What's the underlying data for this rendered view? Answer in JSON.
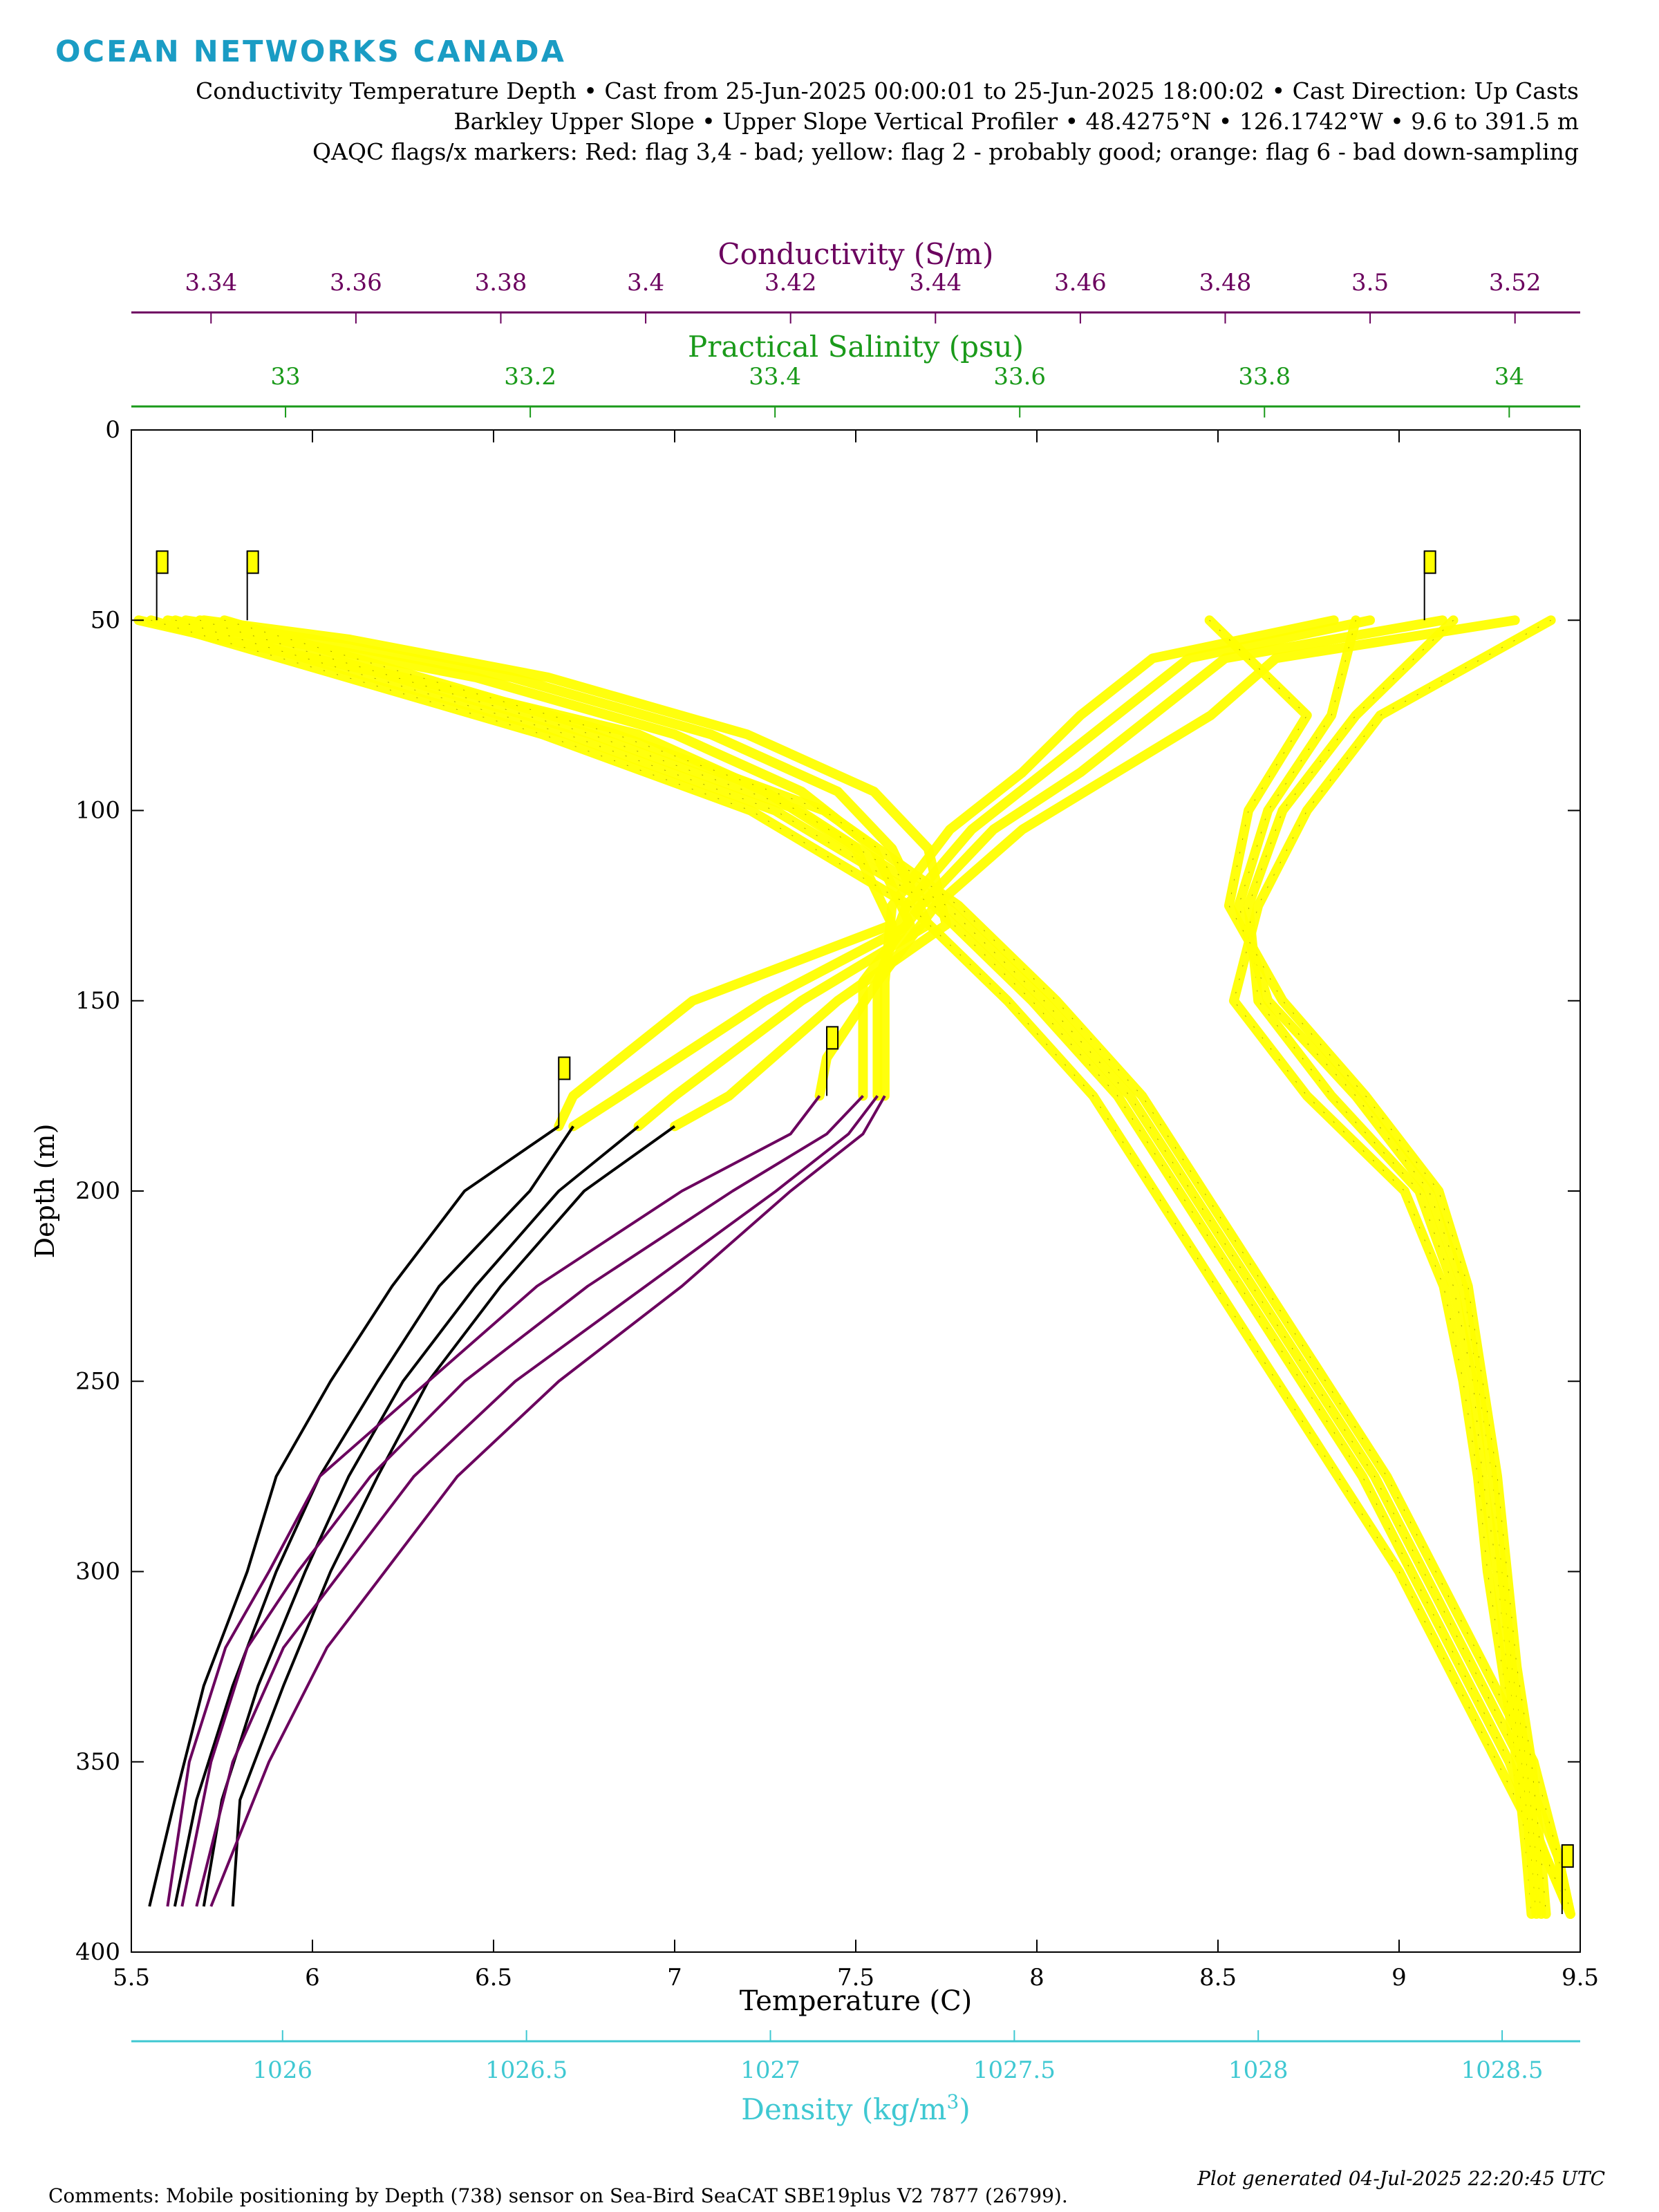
{
  "logo": "OCEAN NETWORKS CANADA",
  "header": {
    "line1": "Conductivity Temperature Depth • Cast from 25-Jun-2025 00:00:01 to 25-Jun-2025 18:00:02 • Cast Direction: Up Casts",
    "line2": "Barkley Upper Slope • Upper Slope Vertical Profiler • 48.4275°N • 126.1742°W • 9.6 to 391.5 m",
    "line3": "QAQC flags/x markers: Red: flag 3,4 - bad; yellow: flag 2 - probably good; orange: flag 6 - bad down-sampling"
  },
  "footer": {
    "comments": "Comments: Mobile positioning by Depth (738) sensor on Sea-Bird SeaCAT SBE19plus V2 7877 (26799).",
    "generated": "Plot generated 04-Jul-2025 22:20:45 UTC"
  },
  "colors": {
    "conductivity": "#6b005e",
    "salinity": "#1a9a1a",
    "density": "#3fc8d2",
    "temperature": "#000000",
    "qaqc_yellow": "#ffff00"
  },
  "chart_data": {
    "type": "line",
    "y_axis": {
      "label": "Depth (m)",
      "range": [
        0,
        400
      ],
      "reversed": true,
      "ticks": [
        "0",
        "50",
        "100",
        "150",
        "200",
        "250",
        "300",
        "350",
        "400"
      ]
    },
    "axes": {
      "temperature": {
        "label": "Temperature (C)",
        "range": [
          5.5,
          9.5
        ],
        "ticks": [
          {
            "v": 5.5,
            "t": "5.5"
          },
          {
            "v": 6,
            "t": "6"
          },
          {
            "v": 6.5,
            "t": "6.5"
          },
          {
            "v": 7,
            "t": "7"
          },
          {
            "v": 7.5,
            "t": "7.5"
          },
          {
            "v": 8,
            "t": "8"
          },
          {
            "v": 8.5,
            "t": "8.5"
          },
          {
            "v": 9,
            "t": "9"
          },
          {
            "v": 9.5,
            "t": "9.5"
          }
        ]
      },
      "conductivity": {
        "label": "Conductivity (S/m)",
        "range": [
          3.329,
          3.529
        ],
        "ticks": [
          {
            "v": 3.34,
            "t": "3.34"
          },
          {
            "v": 3.36,
            "t": "3.36"
          },
          {
            "v": 3.38,
            "t": "3.38"
          },
          {
            "v": 3.4,
            "t": "3.4"
          },
          {
            "v": 3.42,
            "t": "3.42"
          },
          {
            "v": 3.44,
            "t": "3.44"
          },
          {
            "v": 3.46,
            "t": "3.46"
          },
          {
            "v": 3.48,
            "t": "3.48"
          },
          {
            "v": 3.5,
            "t": "3.5"
          },
          {
            "v": 3.52,
            "t": "3.52"
          }
        ]
      },
      "salinity": {
        "label": "Practical Salinity (psu)",
        "range": [
          32.874,
          34.058
        ],
        "ticks": [
          {
            "v": 33,
            "t": "33"
          },
          {
            "v": 33.2,
            "t": "33.2"
          },
          {
            "v": 33.4,
            "t": "33.4"
          },
          {
            "v": 33.6,
            "t": "33.6"
          },
          {
            "v": 33.8,
            "t": "33.8"
          },
          {
            "v": 34,
            "t": "34"
          }
        ]
      },
      "density": {
        "label": "Density (kg/m",
        "label_sup": "3",
        "label_end": ")",
        "range": [
          1025.69,
          1028.66
        ],
        "ticks": [
          {
            "v": 1026,
            "t": "1026"
          },
          {
            "v": 1026.5,
            "t": "1026.5"
          },
          {
            "v": 1027,
            "t": "1027"
          },
          {
            "v": 1027.5,
            "t": "1027.5"
          },
          {
            "v": 1028,
            "t": "1028"
          },
          {
            "v": 1028.5,
            "t": "1028.5"
          }
        ]
      }
    },
    "series": [
      {
        "variable": "temperature",
        "color": "#000000",
        "qaqc": "yellow",
        "depth": [
          50,
          55,
          65,
          80,
          95,
          110,
          130,
          150,
          175,
          183,
          200,
          225,
          250,
          275,
          300,
          330,
          360,
          388
        ],
        "casts": [
          [
            5.52,
            5.75,
            6.25,
            6.9,
            7.25,
            7.5,
            7.6,
            7.05,
            6.72,
            6.68,
            6.42,
            6.22,
            6.05,
            5.9,
            5.82,
            5.7,
            5.62,
            5.55
          ],
          [
            5.6,
            5.9,
            6.45,
            7.0,
            7.35,
            7.55,
            7.65,
            7.25,
            6.85,
            6.72,
            6.6,
            6.35,
            6.18,
            6.02,
            5.9,
            5.78,
            5.68,
            5.62
          ],
          [
            5.65,
            6.0,
            6.55,
            7.1,
            7.45,
            7.6,
            7.7,
            7.35,
            7.0,
            6.9,
            6.68,
            6.45,
            6.25,
            6.1,
            5.98,
            5.85,
            5.75,
            5.7
          ],
          [
            5.7,
            6.1,
            6.65,
            7.2,
            7.55,
            7.7,
            7.75,
            7.45,
            7.15,
            7.0,
            6.75,
            6.52,
            6.32,
            6.18,
            6.05,
            5.92,
            5.8,
            5.78
          ]
        ]
      },
      {
        "variable": "conductivity",
        "color": "#6b005e",
        "qaqc": "yellow",
        "depth": [
          50,
          60,
          75,
          90,
          105,
          125,
          145,
          165,
          175,
          185,
          200,
          225,
          250,
          275,
          300,
          320,
          350,
          388
        ],
        "casts": [
          [
            3.52,
            3.487,
            3.478,
            3.465,
            3.452,
            3.44,
            3.432,
            3.425,
            3.424,
            3.42,
            3.405,
            3.385,
            3.37,
            3.355,
            3.348,
            3.342,
            3.337,
            3.334
          ],
          [
            3.51,
            3.48,
            3.47,
            3.46,
            3.448,
            3.438,
            3.43,
            3.43,
            3.43,
            3.425,
            3.412,
            3.392,
            3.375,
            3.362,
            3.352,
            3.345,
            3.34,
            3.336
          ],
          [
            3.5,
            3.475,
            3.465,
            3.455,
            3.445,
            3.436,
            3.432,
            3.432,
            3.432,
            3.428,
            3.418,
            3.4,
            3.382,
            3.368,
            3.358,
            3.35,
            3.343,
            3.338
          ],
          [
            3.495,
            3.47,
            3.46,
            3.452,
            3.442,
            3.434,
            3.433,
            3.433,
            3.433,
            3.43,
            3.42,
            3.405,
            3.388,
            3.374,
            3.364,
            3.356,
            3.348,
            3.34
          ]
        ]
      },
      {
        "variable": "salinity",
        "color": "#1a9a1a",
        "qaqc": "yellow",
        "depth": [
          50,
          80,
          100,
          125,
          150,
          175,
          200,
          225,
          250,
          275,
          300,
          325,
          350,
          375,
          390
        ],
        "casts": [
          [
            32.89,
            33.21,
            33.38,
            33.51,
            33.59,
            33.66,
            33.71,
            33.76,
            33.81,
            33.86,
            33.91,
            33.95,
            33.99,
            34.03,
            34.05
          ],
          [
            32.91,
            33.23,
            33.4,
            33.53,
            33.61,
            33.68,
            33.73,
            33.78,
            33.83,
            33.88,
            33.92,
            33.96,
            34.0,
            34.03,
            34.05
          ],
          [
            32.93,
            33.25,
            33.42,
            33.54,
            33.62,
            33.69,
            33.74,
            33.79,
            33.84,
            33.89,
            33.93,
            33.97,
            34.01,
            34.04,
            34.05
          ],
          [
            32.95,
            33.27,
            33.44,
            33.55,
            33.63,
            33.7,
            33.75,
            33.8,
            33.85,
            33.9,
            33.94,
            33.98,
            34.02,
            34.04,
            34.05
          ]
        ]
      },
      {
        "variable": "density",
        "color": "#3fc8d2",
        "qaqc": "yellow",
        "depth": [
          50,
          75,
          100,
          125,
          150,
          175,
          200,
          225,
          250,
          275,
          300,
          325,
          350,
          375,
          390
        ],
        "casts": [
          [
            1028.6,
            1028.25,
            1028.1,
            1028.0,
            1027.95,
            1028.1,
            1028.3,
            1028.38,
            1028.42,
            1028.45,
            1028.47,
            1028.5,
            1028.53,
            1028.55,
            1028.56
          ],
          [
            1028.4,
            1028.2,
            1028.05,
            1027.98,
            1028.0,
            1028.15,
            1028.33,
            1028.4,
            1028.44,
            1028.46,
            1028.49,
            1028.51,
            1028.54,
            1028.56,
            1028.57
          ],
          [
            1028.2,
            1028.15,
            1028.02,
            1027.96,
            1028.02,
            1028.2,
            1028.35,
            1028.42,
            1028.45,
            1028.48,
            1028.5,
            1028.52,
            1028.55,
            1028.57,
            1028.58
          ],
          [
            1027.9,
            1028.1,
            1027.98,
            1027.94,
            1028.05,
            1028.22,
            1028.37,
            1028.43,
            1028.46,
            1028.49,
            1028.51,
            1028.53,
            1028.56,
            1028.58,
            1028.59
          ]
        ]
      }
    ],
    "flags": [
      {
        "axis": "temperature",
        "value": 5.57,
        "depth": 50
      },
      {
        "axis": "temperature",
        "value": 5.82,
        "depth": 50
      },
      {
        "axis": "temperature",
        "value": 9.07,
        "depth": 50
      },
      {
        "axis": "temperature",
        "value": 6.68,
        "depth": 183
      },
      {
        "axis": "temperature",
        "value": 7.42,
        "depth": 175
      },
      {
        "axis": "temperature",
        "value": 9.45,
        "depth": 390
      }
    ]
  }
}
